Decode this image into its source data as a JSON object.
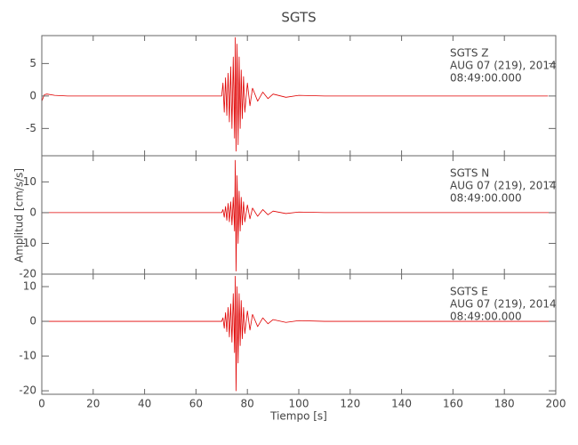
{
  "chart_data": [
    {
      "type": "line",
      "title": "SGTS",
      "annotations": [
        "SGTS   Z",
        "AUG 07 (219), 2014",
        "08:49:00.000"
      ],
      "x": [
        0,
        1,
        2,
        5,
        10,
        20,
        30,
        40,
        50,
        60,
        70,
        70.5,
        71,
        71.5,
        72,
        72.5,
        73,
        73.5,
        74,
        74.5,
        75,
        75.3,
        75.6,
        76,
        76.4,
        76.8,
        77.2,
        77.6,
        78,
        78.5,
        79,
        80,
        81,
        82,
        84,
        86,
        88,
        90,
        95,
        100,
        110,
        120,
        140,
        160,
        180,
        197
      ],
      "values": [
        -0.8,
        0.2,
        0.3,
        0.1,
        0,
        0,
        0,
        0,
        0,
        0,
        0,
        2,
        -2.5,
        2.8,
        -3,
        3.5,
        -4,
        4.5,
        -5,
        6,
        -6.5,
        9,
        -8.5,
        8,
        -7.5,
        6,
        -5,
        4,
        -3.5,
        3,
        -2.5,
        2,
        -1.5,
        1.2,
        -0.8,
        0.6,
        -0.4,
        0.3,
        -0.2,
        0.1,
        0,
        0,
        0,
        0,
        0,
        0
      ],
      "color": "#e00000",
      "xlim": [
        0,
        200
      ],
      "xticks": [
        0,
        20,
        40,
        60,
        80,
        100,
        120,
        140,
        160,
        180,
        200
      ],
      "ylim": [
        -9.2,
        9.3
      ],
      "yticks": [
        -5,
        0,
        5
      ]
    },
    {
      "type": "line",
      "ylabel": "Amplitud [cm/s/s]",
      "annotations": [
        "SGTS   N",
        "AUG 07 (219), 2014",
        "08:49:00.000"
      ],
      "x": [
        0,
        1,
        2,
        5,
        10,
        20,
        30,
        40,
        50,
        60,
        70,
        70.5,
        71,
        71.5,
        72,
        72.5,
        73,
        73.5,
        74,
        74.5,
        75,
        75.3,
        75.6,
        76,
        76.4,
        76.8,
        77.2,
        77.6,
        78,
        78.5,
        79,
        80,
        81,
        82,
        84,
        86,
        88,
        90,
        95,
        100,
        110,
        120,
        140,
        160,
        180,
        200
      ],
      "values": [
        0,
        0,
        0,
        0,
        0,
        0,
        0,
        0,
        0,
        0,
        0,
        1,
        -1.5,
        2,
        -2.5,
        3,
        -3,
        3.5,
        -4,
        5,
        -6,
        17,
        -19,
        12,
        -10,
        7,
        -6,
        5,
        -4,
        3.5,
        -3,
        2.5,
        -2,
        1.5,
        -1.2,
        1,
        -0.7,
        0.5,
        -0.3,
        0.2,
        0,
        0,
        0,
        0,
        0,
        0
      ],
      "color": "#e00000",
      "xlim": [
        0,
        200
      ],
      "xticks": [
        0,
        20,
        40,
        60,
        80,
        100,
        120,
        140,
        160,
        180,
        200
      ],
      "ylim": [
        -20,
        18.5
      ],
      "yticks": [
        -20,
        -10,
        0,
        10
      ]
    },
    {
      "type": "line",
      "xlabel": "Tiempo [s]",
      "annotations": [
        "SGTS   E",
        "AUG 07 (219), 2014",
        "08:49:00.000"
      ],
      "x": [
        0,
        1,
        2,
        5,
        10,
        20,
        30,
        40,
        50,
        60,
        70,
        70.5,
        71,
        71.5,
        72,
        72.5,
        73,
        73.5,
        74,
        74.5,
        75,
        75.3,
        75.6,
        76,
        76.4,
        76.8,
        77.2,
        77.6,
        78,
        78.5,
        79,
        80,
        81,
        82,
        84,
        86,
        88,
        90,
        95,
        100,
        110,
        120,
        140,
        160,
        180,
        200
      ],
      "values": [
        0,
        0,
        0,
        0,
        0,
        0,
        0,
        0,
        0,
        0,
        0,
        1,
        -2,
        2.5,
        -3,
        4,
        -4.5,
        5,
        -6,
        8,
        -9,
        13,
        -20,
        10,
        -12,
        8,
        -7,
        6,
        -5,
        4,
        -3.5,
        3,
        -2.5,
        2,
        -1.5,
        1,
        -0.7,
        0.5,
        -0.3,
        0.2,
        0,
        0,
        0,
        0,
        0,
        0
      ],
      "color": "#e00000",
      "xlim": [
        0,
        200
      ],
      "xticks": [
        0,
        20,
        40,
        60,
        80,
        100,
        120,
        140,
        160,
        180,
        200
      ],
      "ylim": [
        -21,
        13.6
      ],
      "yticks": [
        -20,
        -10,
        0,
        10
      ]
    }
  ]
}
